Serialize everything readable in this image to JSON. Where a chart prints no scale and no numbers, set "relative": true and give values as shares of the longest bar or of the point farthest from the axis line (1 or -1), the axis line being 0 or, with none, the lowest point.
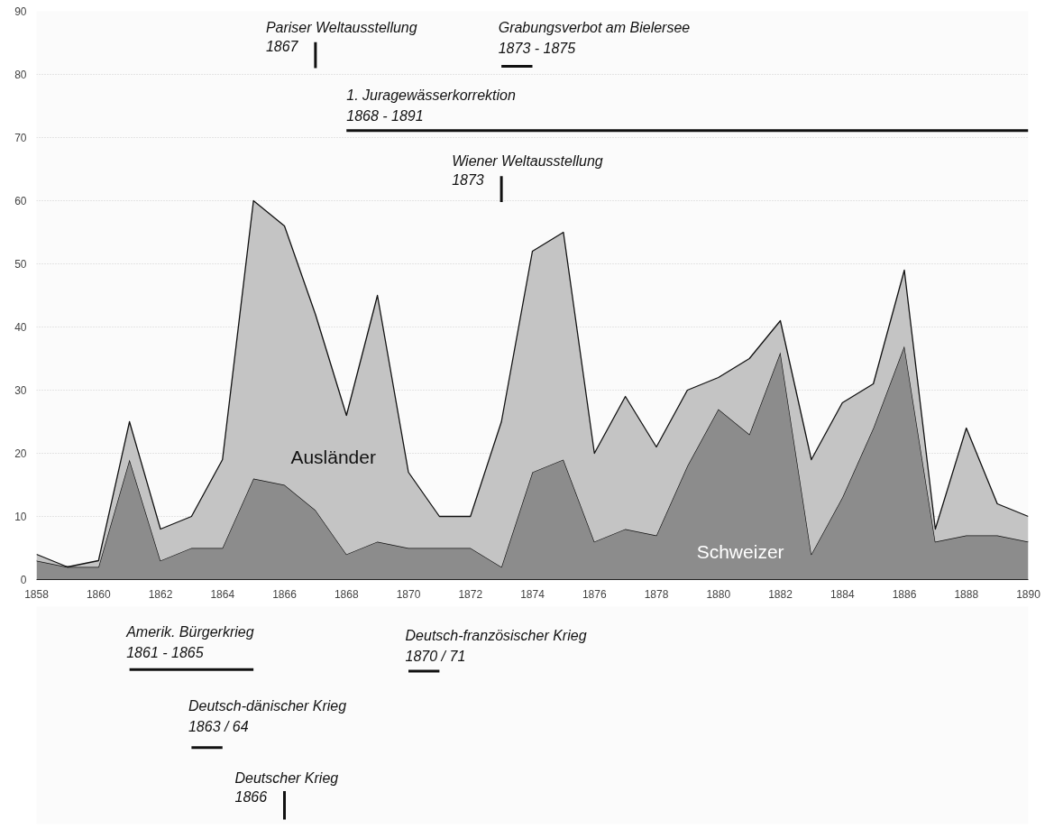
{
  "chart_data": [
    {
      "type": "area",
      "stacked": true,
      "x": [
        1858,
        1859,
        1860,
        1861,
        1862,
        1863,
        1864,
        1865,
        1866,
        1867,
        1868,
        1869,
        1870,
        1871,
        1872,
        1873,
        1874,
        1875,
        1876,
        1877,
        1878,
        1879,
        1880,
        1881,
        1882,
        1883,
        1884,
        1885,
        1886,
        1887,
        1888,
        1889,
        1890
      ],
      "series": [
        {
          "name": "Schweizer",
          "color": "#8c8c8c",
          "values": [
            3,
            2,
            2,
            19,
            3,
            5,
            5,
            16,
            15,
            11,
            4,
            6,
            5,
            5,
            5,
            2,
            17,
            19,
            6,
            8,
            7,
            18,
            27,
            23,
            36,
            4,
            13,
            24,
            37,
            6,
            7,
            7,
            6
          ]
        },
        {
          "name": "Ausländer",
          "color": "#c4c4c4",
          "values": [
            1,
            0,
            1,
            6,
            5,
            5,
            14,
            44,
            41,
            31,
            22,
            39,
            12,
            5,
            5,
            23,
            35,
            36,
            14,
            21,
            14,
            12,
            5,
            12,
            5,
            15,
            15,
            7,
            12,
            2,
            17,
            5,
            4
          ]
        },
        {
          "type": "line",
          "color": "#111111",
          "x": [
            1867,
            1867
          ],
          "values": [
            85.1,
            81
          ]
        },
        {
          "type": "line",
          "color": "#111111",
          "x": [
            1873,
            1874
          ],
          "values": [
            81.3,
            81.3
          ]
        },
        {
          "type": "line",
          "color": "#111111",
          "x": [
            1868,
            1890
          ],
          "values": [
            71.1,
            71.1
          ]
        },
        {
          "type": "line",
          "color": "#111111",
          "x": [
            1873,
            1873
          ],
          "values": [
            63.9,
            59.8
          ]
        }
      ],
      "annotations": [
        "Pariser Weltausstellung\n1867",
        "Grabungsverbot am Bielersee\n1873 - 1875",
        "1. Juragewässerkorrektion\n1868 - 1891",
        "Wiener Weltausstellung\n1873"
      ],
      "xlim": [
        1858,
        1890
      ],
      "xticks": [
        1858,
        1860,
        1862,
        1864,
        1866,
        1868,
        1870,
        1872,
        1874,
        1876,
        1878,
        1880,
        1882,
        1884,
        1886,
        1888,
        1890
      ],
      "ylim": [
        0,
        90
      ],
      "yticks": [
        0,
        10,
        20,
        30,
        40,
        50,
        60,
        70,
        80,
        90
      ],
      "grid": "y"
    },
    {
      "type": "line",
      "relative": true,
      "tick_labels": false,
      "xlim": [
        1858,
        1890
      ],
      "series": [
        {
          "color": "#111111",
          "x": [
            1861,
            1865
          ],
          "values": [
            1,
            1
          ]
        },
        {
          "color": "#111111",
          "x": [
            1863,
            1864
          ],
          "values": [
            0.48,
            0.48
          ]
        },
        {
          "color": "#111111",
          "x": [
            1870,
            1871
          ],
          "values": [
            0.99,
            0.99
          ]
        },
        {
          "color": "#111111",
          "x": [
            1866,
            1866
          ],
          "values": [
            0.19,
            0
          ]
        }
      ],
      "annotations": [
        "Amerik. Bürgerkrieg\n1861 - 1865",
        "Deutsch-dänischer Krieg\n1863 / 64",
        "Deutsch-französischer Krieg\n1870 / 71",
        "Deutscher Krieg\n1866"
      ]
    }
  ]
}
